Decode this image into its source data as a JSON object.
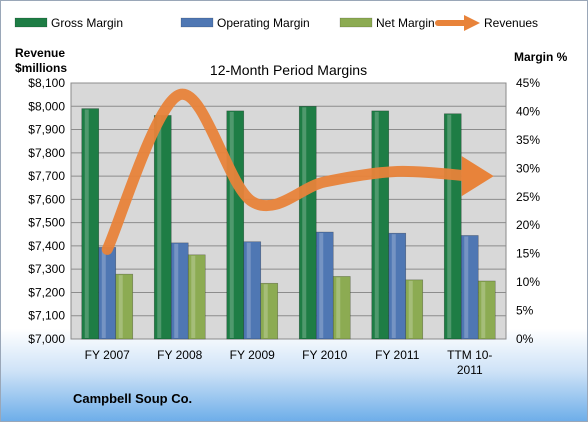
{
  "company": "Campbell Soup Co.",
  "colors": {
    "gross": "#1e7d45",
    "operating": "#4f77b3",
    "net": "#8cab52",
    "revenue": "#e8833a",
    "plot_bg": "#d8d8d8"
  },
  "chart_data": {
    "type": "bar",
    "title": "12-Month Period Margins",
    "left_axis_title": "Revenue $millions",
    "left_axis_title_lines": [
      "Revenue",
      "$millions"
    ],
    "right_axis_title": "Margin %",
    "legend_position": "top",
    "categories": [
      "FY 2007",
      "FY 2008",
      "FY 2009",
      "FY 2010",
      "FY 2011",
      "TTM 10-2011"
    ],
    "category_lines": [
      [
        "FY 2007"
      ],
      [
        "FY 2008"
      ],
      [
        "FY 2009"
      ],
      [
        "FY 2010"
      ],
      [
        "FY 2011"
      ],
      [
        "TTM 10-",
        "2011"
      ]
    ],
    "left_ylim": [
      7000,
      8100
    ],
    "left_ticks": [
      "$7,000",
      "$7,100",
      "$7,200",
      "$7,300",
      "$7,400",
      "$7,500",
      "$7,600",
      "$7,700",
      "$7,800",
      "$7,900",
      "$8,000",
      "$8,100"
    ],
    "right_ylim": [
      0,
      45
    ],
    "right_ticks": [
      "0%",
      "5%",
      "10%",
      "15%",
      "20%",
      "25%",
      "30%",
      "35%",
      "40%",
      "45%"
    ],
    "series": [
      {
        "name": "Gross Margin",
        "kind": "bar",
        "axis": "right",
        "values": [
          40.5,
          39.3,
          40.1,
          40.9,
          40.1,
          39.6
        ]
      },
      {
        "name": "Operating Margin",
        "kind": "bar",
        "axis": "right",
        "values": [
          16.1,
          16.9,
          17.1,
          18.8,
          18.6,
          18.2
        ]
      },
      {
        "name": "Net Margin",
        "kind": "bar",
        "axis": "right",
        "values": [
          11.4,
          14.8,
          9.8,
          11.0,
          10.4,
          10.2
        ]
      },
      {
        "name": "Revenues",
        "kind": "line",
        "axis": "left",
        "values": [
          7385,
          8050,
          7590,
          7675,
          7720,
          7700
        ]
      }
    ]
  }
}
